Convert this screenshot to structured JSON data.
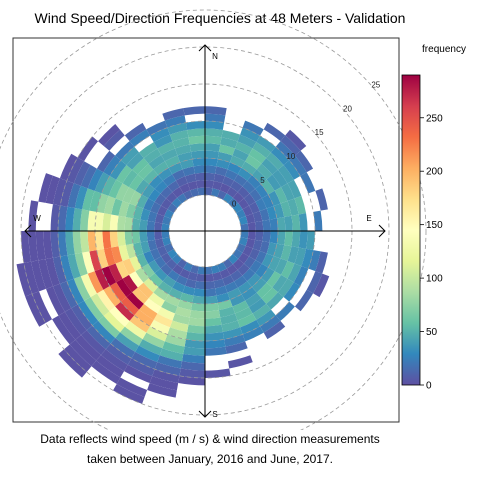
{
  "chart_data": {
    "type": "heatmap",
    "subtype": "polar-frequency",
    "title": "Wind Speed/Direction Frequencies at 48 Meters - Validation",
    "caption_lines": [
      "Data reflects wind speed (m / s) & wind direction measurements",
      "taken between January, 2016 and June, 2017."
    ],
    "directions": [
      "N",
      "E",
      "S",
      "W"
    ],
    "radial_axis": {
      "ticks": [
        0,
        5,
        10,
        15,
        20,
        25
      ],
      "range": [
        0,
        25
      ],
      "gridlines": true
    },
    "colorbar": {
      "title": "frequency",
      "range": [
        0,
        290
      ],
      "ticks": [
        0,
        50,
        100,
        150,
        200,
        250
      ],
      "palette": [
        "#5E4FA2",
        "#3288BD",
        "#66C2A5",
        "#ABDDA4",
        "#E6F598",
        "#FFFFBF",
        "#FEE08B",
        "#FDAE61",
        "#F46D43",
        "#D53E4F",
        "#9E0142"
      ]
    },
    "bins": {
      "direction_step_deg": 10,
      "speed_step": 1,
      "center_speed": 4,
      "ridge_direction_deg": 238,
      "ridge_speed": 9,
      "peak_frequency": 290,
      "max_speed": 21
    }
  }
}
